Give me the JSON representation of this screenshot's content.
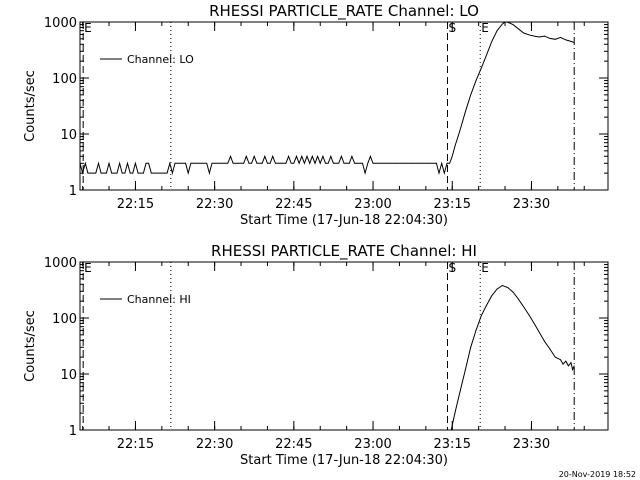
{
  "footer_date": "20-Nov-2019 18:52",
  "chart_data": [
    {
      "type": "line",
      "title": "RHESSI PARTICLE_RATE Channel: LO",
      "xlabel": "Start Time (17-Jun-18 22:04:30)",
      "ylabel": "Counts/sec",
      "yscale": "log",
      "ylim": [
        1,
        1000
      ],
      "xlim_minutes_from_start": [
        0,
        100
      ],
      "x_ticks": [
        {
          "t": 10.5,
          "label": "22:15"
        },
        {
          "t": 25.5,
          "label": "22:30"
        },
        {
          "t": 40.5,
          "label": "22:45"
        },
        {
          "t": 55.5,
          "label": "23:00"
        },
        {
          "t": 70.5,
          "label": "23:15"
        },
        {
          "t": 85.5,
          "label": "23:30"
        }
      ],
      "y_ticks": [
        {
          "v": 1,
          "label": "1"
        },
        {
          "v": 10,
          "label": "10"
        },
        {
          "v": 100,
          "label": "100"
        },
        {
          "v": 1000,
          "label": "1000"
        }
      ],
      "legend": {
        "label": "Channel: LO",
        "position": "top-left"
      },
      "markers": [
        {
          "t": 0.6,
          "style": "dash",
          "label": "E"
        },
        {
          "t": 17.2,
          "style": "dot",
          "label": ""
        },
        {
          "t": 69.6,
          "style": "dash",
          "label": "S"
        },
        {
          "t": 75.8,
          "style": "dot",
          "label": "E"
        },
        {
          "t": 93.6,
          "style": "dashdot",
          "label": ""
        }
      ],
      "series": [
        {
          "name": "Channel: LO",
          "points": [
            [
              0.0,
              3.0
            ],
            [
              0.5,
              2.0
            ],
            [
              1.0,
              3.0
            ],
            [
              1.5,
              2.0
            ],
            [
              2.0,
              2.0
            ],
            [
              3.0,
              2.0
            ],
            [
              3.5,
              3.0
            ],
            [
              4.0,
              2.0
            ],
            [
              5.0,
              2.0
            ],
            [
              5.5,
              3.0
            ],
            [
              6.0,
              2.0
            ],
            [
              7.0,
              2.0
            ],
            [
              7.5,
              3.0
            ],
            [
              8.0,
              2.0
            ],
            [
              8.5,
              2.0
            ],
            [
              9.0,
              3.0
            ],
            [
              9.5,
              2.0
            ],
            [
              10.0,
              2.0
            ],
            [
              10.5,
              3.0
            ],
            [
              11.0,
              2.0
            ],
            [
              12.0,
              2.0
            ],
            [
              12.5,
              3.0
            ],
            [
              13.0,
              3.0
            ],
            [
              13.5,
              2.0
            ],
            [
              14.0,
              2.0
            ],
            [
              15.0,
              2.0
            ],
            [
              16.5,
              2.0
            ],
            [
              17.0,
              3.0
            ],
            [
              17.5,
              2.0
            ],
            [
              18.0,
              3.0
            ],
            [
              19.0,
              3.0
            ],
            [
              20.0,
              3.0
            ],
            [
              20.5,
              2.0
            ],
            [
              21.0,
              3.0
            ],
            [
              24.0,
              3.0
            ],
            [
              24.5,
              2.0
            ],
            [
              25.0,
              3.0
            ],
            [
              27.0,
              3.0
            ],
            [
              28.0,
              3.0
            ],
            [
              28.5,
              4.0
            ],
            [
              29.0,
              3.0
            ],
            [
              30.0,
              3.0
            ],
            [
              31.0,
              3.0
            ],
            [
              31.5,
              4.0
            ],
            [
              32.0,
              3.0
            ],
            [
              32.5,
              3.0
            ],
            [
              33.0,
              4.0
            ],
            [
              33.5,
              3.0
            ],
            [
              34.5,
              3.0
            ],
            [
              35.0,
              4.0
            ],
            [
              35.5,
              3.0
            ],
            [
              36.0,
              3.0
            ],
            [
              36.5,
              4.0
            ],
            [
              37.0,
              3.0
            ],
            [
              38.0,
              3.0
            ],
            [
              39.0,
              3.0
            ],
            [
              39.5,
              4.0
            ],
            [
              40.0,
              3.0
            ],
            [
              40.5,
              3.0
            ],
            [
              41.0,
              4.0
            ],
            [
              41.5,
              3.0
            ],
            [
              42.0,
              4.0
            ],
            [
              42.5,
              3.0
            ],
            [
              43.0,
              4.0
            ],
            [
              43.5,
              3.0
            ],
            [
              44.0,
              4.0
            ],
            [
              44.5,
              3.0
            ],
            [
              45.0,
              4.0
            ],
            [
              45.5,
              3.0
            ],
            [
              46.0,
              4.0
            ],
            [
              46.5,
              3.0
            ],
            [
              47.0,
              3.0
            ],
            [
              47.5,
              4.0
            ],
            [
              48.0,
              3.0
            ],
            [
              49.0,
              3.0
            ],
            [
              49.5,
              4.0
            ],
            [
              50.0,
              3.0
            ],
            [
              51.0,
              3.0
            ],
            [
              51.5,
              4.0
            ],
            [
              52.0,
              3.0
            ],
            [
              53.5,
              3.0
            ],
            [
              54.0,
              2.0
            ],
            [
              54.5,
              3.0
            ],
            [
              55.0,
              4.0
            ],
            [
              55.5,
              3.0
            ],
            [
              60.0,
              3.0
            ],
            [
              63.0,
              3.0
            ],
            [
              66.0,
              3.0
            ],
            [
              67.5,
              3.0
            ],
            [
              68.0,
              2.0
            ],
            [
              68.5,
              3.0
            ],
            [
              69.0,
              2.0
            ],
            [
              69.5,
              3.0
            ],
            [
              70.0,
              3.0
            ],
            [
              70.5,
              4.0
            ],
            [
              71.0,
              6.0
            ],
            [
              72.0,
              12.0
            ],
            [
              73.0,
              25.0
            ],
            [
              74.0,
              50.0
            ],
            [
              75.0,
              90.0
            ],
            [
              76.0,
              150.0
            ],
            [
              77.0,
              260.0
            ],
            [
              78.0,
              450.0
            ],
            [
              79.0,
              700.0
            ],
            [
              80.0,
              920.0
            ],
            [
              80.5,
              1000.0
            ],
            [
              81.0,
              990.0
            ],
            [
              82.0,
              900.0
            ],
            [
              83.0,
              760.0
            ],
            [
              84.0,
              640.0
            ],
            [
              85.0,
              590.0
            ],
            [
              86.0,
              560.0
            ],
            [
              87.0,
              540.0
            ],
            [
              88.0,
              560.0
            ],
            [
              89.0,
              510.0
            ],
            [
              90.0,
              490.0
            ],
            [
              91.0,
              530.0
            ],
            [
              92.0,
              480.0
            ],
            [
              93.0,
              450.0
            ],
            [
              93.6,
              430.0
            ]
          ]
        }
      ]
    },
    {
      "type": "line",
      "title": "RHESSI PARTICLE_RATE Channel: HI",
      "xlabel": "Start Time (17-Jun-18 22:04:30)",
      "ylabel": "Counts/sec",
      "yscale": "log",
      "ylim": [
        1,
        1000
      ],
      "xlim_minutes_from_start": [
        0,
        100
      ],
      "x_ticks": [
        {
          "t": 10.5,
          "label": "22:15"
        },
        {
          "t": 25.5,
          "label": "22:30"
        },
        {
          "t": 40.5,
          "label": "22:45"
        },
        {
          "t": 55.5,
          "label": "23:00"
        },
        {
          "t": 70.5,
          "label": "23:15"
        },
        {
          "t": 85.5,
          "label": "23:30"
        }
      ],
      "y_ticks": [
        {
          "v": 1,
          "label": "1"
        },
        {
          "v": 10,
          "label": "10"
        },
        {
          "v": 100,
          "label": "100"
        },
        {
          "v": 1000,
          "label": "1000"
        }
      ],
      "legend": {
        "label": "Channel: HI",
        "position": "top-left"
      },
      "markers": [
        {
          "t": 0.6,
          "style": "dash",
          "label": "E"
        },
        {
          "t": 17.2,
          "style": "dot",
          "label": ""
        },
        {
          "t": 69.6,
          "style": "dash",
          "label": "S"
        },
        {
          "t": 75.8,
          "style": "dot",
          "label": "E"
        },
        {
          "t": 93.6,
          "style": "dashdot",
          "label": ""
        }
      ],
      "series": [
        {
          "name": "Channel: HI",
          "points": [
            [
              70.3,
              1.0
            ],
            [
              71.0,
              2.0
            ],
            [
              72.0,
              5.0
            ],
            [
              73.0,
              12.0
            ],
            [
              74.0,
              30.0
            ],
            [
              75.0,
              60.0
            ],
            [
              76.0,
              110.0
            ],
            [
              77.0,
              170.0
            ],
            [
              78.0,
              250.0
            ],
            [
              79.0,
              330.0
            ],
            [
              80.0,
              380.0
            ],
            [
              81.0,
              350.0
            ],
            [
              82.0,
              290.0
            ],
            [
              83.0,
              220.0
            ],
            [
              84.0,
              160.0
            ],
            [
              85.0,
              115.0
            ],
            [
              86.0,
              80.0
            ],
            [
              87.0,
              55.0
            ],
            [
              88.0,
              38.0
            ],
            [
              89.0,
              28.0
            ],
            [
              90.0,
              20.0
            ],
            [
              91.0,
              18.0
            ],
            [
              91.5,
              15.0
            ],
            [
              92.0,
              17.0
            ],
            [
              92.5,
              14.0
            ],
            [
              93.0,
              16.0
            ],
            [
              93.3,
              12.0
            ],
            [
              93.6,
              14.0
            ]
          ]
        }
      ]
    }
  ]
}
